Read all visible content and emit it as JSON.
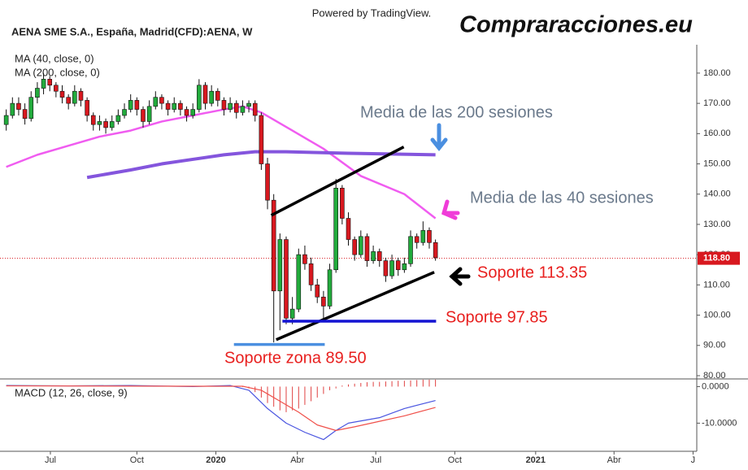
{
  "chart_data": {
    "type": "candlestick",
    "title": "AENA SME S.A., España, Madrid(CFD):AENA, W",
    "source": "Powered by TradingView.",
    "logo": "Compraracciones.eu",
    "up_color": "#22ab3c",
    "down_color": "#d8181f",
    "candles": [
      [
        163,
        168,
        161,
        166
      ],
      [
        166,
        172,
        165,
        170
      ],
      [
        170,
        172,
        166,
        168
      ],
      [
        168,
        170,
        163,
        165
      ],
      [
        165,
        174,
        164,
        172
      ],
      [
        172,
        177,
        170,
        175
      ],
      [
        175,
        180,
        173,
        178
      ],
      [
        178,
        179,
        174,
        176
      ],
      [
        176,
        177,
        172,
        174
      ],
      [
        174,
        176,
        170,
        172
      ],
      [
        172,
        173,
        168,
        170
      ],
      [
        170,
        176,
        169,
        174
      ],
      [
        174,
        175,
        169,
        171
      ],
      [
        171,
        172,
        164,
        166
      ],
      [
        166,
        167,
        161,
        163
      ],
      [
        163,
        166,
        161,
        164
      ],
      [
        164,
        165,
        160,
        162
      ],
      [
        162,
        166,
        161,
        164
      ],
      [
        164,
        168,
        163,
        166
      ],
      [
        166,
        170,
        165,
        168
      ],
      [
        168,
        173,
        167,
        171
      ],
      [
        171,
        172,
        166,
        168
      ],
      [
        168,
        169,
        162,
        164
      ],
      [
        164,
        171,
        163,
        169
      ],
      [
        169,
        174,
        168,
        172
      ],
      [
        172,
        173,
        168,
        170
      ],
      [
        170,
        171,
        166,
        168
      ],
      [
        168,
        172,
        167,
        170
      ],
      [
        170,
        171,
        166,
        168
      ],
      [
        168,
        169,
        164,
        166
      ],
      [
        166,
        170,
        165,
        168
      ],
      [
        168,
        178,
        167,
        176
      ],
      [
        176,
        177,
        168,
        170
      ],
      [
        170,
        176,
        169,
        174
      ],
      [
        174,
        175,
        169,
        171
      ],
      [
        171,
        172,
        166,
        168
      ],
      [
        168,
        172,
        167,
        170
      ],
      [
        170,
        171,
        165,
        167
      ],
      [
        167,
        171,
        166,
        169
      ],
      [
        169,
        171,
        167,
        170
      ],
      [
        170,
        171,
        164,
        166
      ],
      [
        166,
        167,
        148,
        150
      ],
      [
        150,
        152,
        135,
        138
      ],
      [
        138,
        140,
        91,
        108
      ],
      [
        108,
        127,
        95,
        125
      ],
      [
        125,
        126,
        97,
        99
      ],
      [
        99,
        106,
        97,
        102
      ],
      [
        102,
        122,
        101,
        120
      ],
      [
        120,
        123,
        115,
        117
      ],
      [
        117,
        119,
        108,
        110
      ],
      [
        110,
        112,
        104,
        106
      ],
      [
        106,
        108,
        99,
        103
      ],
      [
        103,
        117,
        102,
        115
      ],
      [
        115,
        145,
        114,
        142
      ],
      [
        142,
        143,
        130,
        132
      ],
      [
        132,
        134,
        123,
        125
      ],
      [
        125,
        126,
        118,
        120
      ],
      [
        120,
        128,
        119,
        126
      ],
      [
        126,
        127,
        116,
        118
      ],
      [
        118,
        123,
        117,
        121
      ],
      [
        121,
        122,
        116,
        118
      ],
      [
        118,
        119,
        111,
        113
      ],
      [
        113,
        120,
        112,
        118
      ],
      [
        118,
        119,
        113,
        115
      ],
      [
        115,
        119,
        114,
        117
      ],
      [
        117,
        128,
        116,
        126
      ],
      [
        126,
        127,
        122,
        124
      ],
      [
        124,
        131,
        123,
        128
      ],
      [
        128,
        129,
        122,
        124
      ],
      [
        124,
        125,
        118,
        119
      ]
    ],
    "xlim": [
      -1,
      111
    ],
    "xticks": [
      {
        "value": 7.1,
        "label": "Jul"
      },
      {
        "value": 21,
        "label": "Oct"
      },
      {
        "value": 33.7,
        "label": "2020"
      },
      {
        "value": 46.8,
        "label": "Abr"
      },
      {
        "value": 59.4,
        "label": "Jul"
      },
      {
        "value": 72.1,
        "label": "Oct"
      },
      {
        "value": 85.1,
        "label": "2021"
      },
      {
        "value": 97.7,
        "label": "Abr"
      },
      {
        "value": 110.4,
        "label": "J"
      }
    ],
    "ylim": [
      80,
      187.5
    ],
    "yticks": [
      {
        "value": 80,
        "label": "80.00"
      },
      {
        "value": 90,
        "label": "90.00"
      },
      {
        "value": 100,
        "label": "100.00"
      },
      {
        "value": 110,
        "label": "110.00"
      },
      {
        "value": 120,
        "label": "120.00"
      },
      {
        "value": 130,
        "label": "130.00"
      },
      {
        "value": 140,
        "label": "140.00"
      },
      {
        "value": 150,
        "label": "150.00"
      },
      {
        "value": 160,
        "label": "160.00"
      },
      {
        "value": 170,
        "label": "170.00"
      },
      {
        "value": 180,
        "label": "180.00"
      }
    ],
    "last_price": {
      "value": 118.8,
      "label": "118.80"
    },
    "series": [
      {
        "name": "MA (40, close, 0)",
        "color": "#f05cf0",
        "x": [
          0,
          5,
          10,
          15,
          20,
          25,
          30,
          35,
          38,
          41,
          46,
          51,
          57,
          64,
          69
        ],
        "values": [
          149,
          153,
          156,
          159,
          161,
          164,
          166,
          168,
          169,
          167,
          161,
          155,
          146,
          140,
          132
        ]
      },
      {
        "name": "MA (200, close, 0)",
        "color": "#8455dd",
        "x": [
          13,
          20,
          25,
          30,
          35,
          40,
          45,
          55,
          69
        ],
        "values": [
          145.5,
          148,
          150,
          151.5,
          153,
          154,
          154,
          153.5,
          153
        ]
      }
    ],
    "drawings": [
      {
        "color": "#000000",
        "x": [
          42.6,
          63.9
        ],
        "values": [
          133,
          155.6
        ]
      },
      {
        "color": "#000000",
        "x": [
          43.4,
          68.8
        ],
        "values": [
          91.9,
          114.2
        ]
      },
      {
        "color": "#1414d2",
        "x": [
          44.4,
          69.1
        ],
        "values": [
          98,
          98
        ]
      },
      {
        "color": "#4a8fe0",
        "x": [
          36.6,
          51.2
        ],
        "values": [
          90.3,
          90.3
        ]
      }
    ],
    "annotations": [
      "Media de las 200 sesiones",
      "Media de las 40 sesiones",
      "Soporte 113.35",
      "Soporte 97.85",
      "Soporte zona 89.50"
    ],
    "macd": {
      "title": "MACD (12, 26, close, 9)",
      "ylim": [
        -17.7,
        2.1
      ],
      "yticks": [
        {
          "value": 0,
          "label": "0.0000"
        },
        {
          "value": -10,
          "label": "-10.0000"
        }
      ],
      "macd_line": {
        "color": "#4a55e0",
        "x": [
          0,
          10,
          20,
          30,
          36,
          39,
          42,
          45,
          48,
          51,
          53,
          55,
          60,
          64,
          69
        ],
        "values": [
          0.3,
          0.2,
          0.3,
          0,
          0.3,
          -1,
          -6,
          -10,
          -12.5,
          -14.5,
          -12,
          -10,
          -8.5,
          -6,
          -3.8
        ]
      },
      "signal_line": {
        "color": "#f0504a",
        "x": [
          0,
          30,
          38,
          41,
          44,
          47,
          50,
          53,
          56,
          60,
          64,
          69
        ],
        "values": [
          0.2,
          0.1,
          0.1,
          -1,
          -4,
          -7,
          -10.5,
          -12,
          -11,
          -9.5,
          -8,
          -5.7
        ]
      },
      "histogram": {
        "color": "#e04040",
        "x": [
          38,
          39,
          40,
          41,
          42,
          43,
          44,
          45,
          46,
          47,
          48,
          49,
          50,
          51,
          52,
          53,
          54,
          55,
          56,
          57,
          58,
          59,
          60,
          61,
          62,
          63,
          64,
          65,
          66,
          67,
          68,
          69
        ],
        "values": [
          0,
          -0.5,
          -1.5,
          -3,
          -4.5,
          -5.5,
          -6.5,
          -7,
          -6.5,
          -6,
          -5,
          -4,
          -3,
          -2,
          -1,
          -0.5,
          0.3,
          0.6,
          0.8,
          1,
          1.2,
          1.3,
          1.3,
          1.4,
          1.5,
          1.6,
          1.6,
          1.7,
          1.8,
          1.9,
          1.9,
          1.9
        ]
      }
    }
  }
}
